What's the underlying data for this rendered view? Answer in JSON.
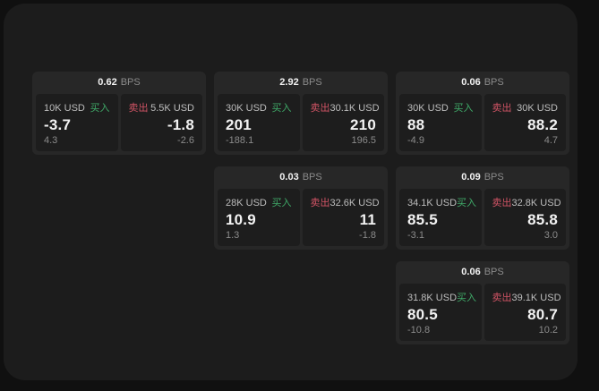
{
  "theme": {
    "outer_bg": "#101010",
    "panel_bg": "#1c1c1c",
    "card_bg": "#272727",
    "tile_bg": "#1d1d1d",
    "buy_green": "#3fa968",
    "sell_red": "#d15465",
    "text_primary": "#f2f2f2",
    "text_secondary": "#bdbdbd",
    "text_muted": "#8b8b8b"
  },
  "labels": {
    "bps": "BPS",
    "buy": "买入",
    "sell": "卖出"
  },
  "cards": [
    {
      "col": 1,
      "row": 1,
      "bps": "0.62",
      "buy": {
        "size": "10K USD",
        "price": "-3.7",
        "delta": "4.3"
      },
      "sell": {
        "size": "5.5K USD",
        "price": "-1.8",
        "delta": "-2.6"
      }
    },
    {
      "col": 2,
      "row": 1,
      "bps": "2.92",
      "buy": {
        "size": "30K USD",
        "price": "201",
        "delta": "-188.1"
      },
      "sell": {
        "size": "30.1K USD",
        "price": "210",
        "delta": "196.5"
      }
    },
    {
      "col": 3,
      "row": 1,
      "bps": "0.06",
      "buy": {
        "size": "30K USD",
        "price": "88",
        "delta": "-4.9"
      },
      "sell": {
        "size": "30K USD",
        "price": "88.2",
        "delta": "4.7"
      }
    },
    {
      "col": 2,
      "row": 2,
      "bps": "0.03",
      "buy": {
        "size": "28K USD",
        "price": "10.9",
        "delta": "1.3"
      },
      "sell": {
        "size": "32.6K USD",
        "price": "11",
        "delta": "-1.8"
      }
    },
    {
      "col": 3,
      "row": 2,
      "bps": "0.09",
      "buy": {
        "size": "34.1K USD",
        "price": "85.5",
        "delta": "-3.1"
      },
      "sell": {
        "size": "32.8K USD",
        "price": "85.8",
        "delta": "3.0"
      }
    },
    {
      "col": 3,
      "row": 3,
      "bps": "0.06",
      "buy": {
        "size": "31.8K USD",
        "price": "80.5",
        "delta": "-10.8"
      },
      "sell": {
        "size": "39.1K USD",
        "price": "80.7",
        "delta": "10.2"
      }
    }
  ]
}
